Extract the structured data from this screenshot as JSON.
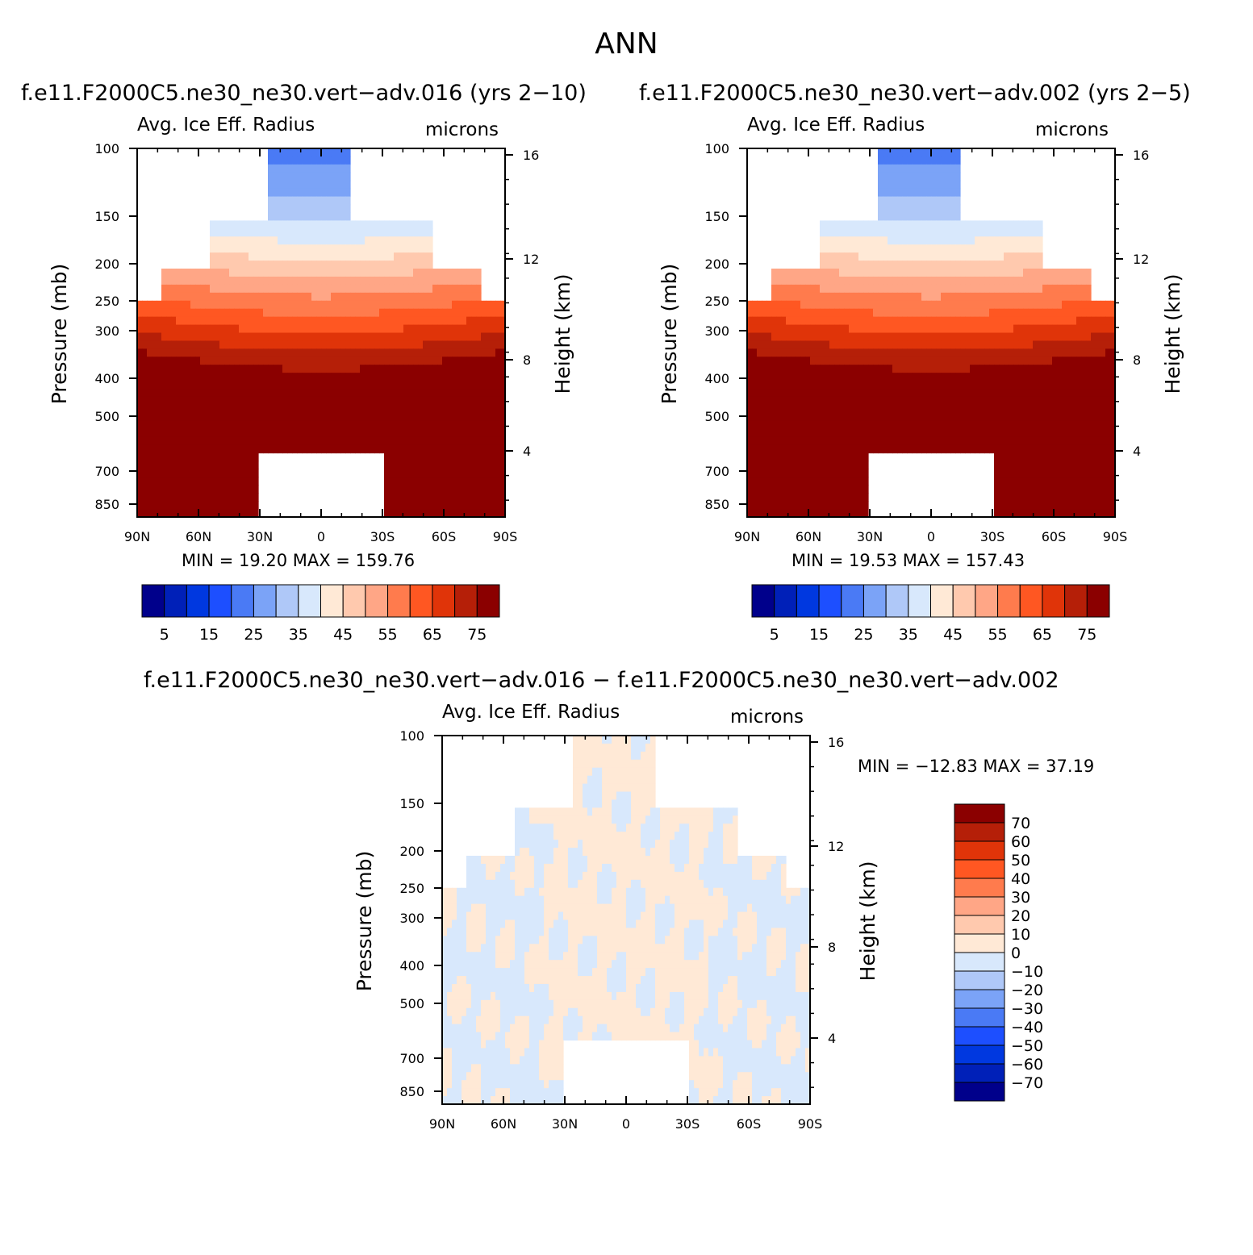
{
  "page_title": "ANN",
  "colors": {
    "seq": [
      "#00008B",
      "#0020B8",
      "#0038E0",
      "#1D4FFF",
      "#4A7AF5",
      "#7BA3F7",
      "#AFC8F8",
      "#D8E8FC",
      "#FFE9D6",
      "#FFC9AE",
      "#FFA686",
      "#FF7B4D",
      "#FF5722",
      "#E03409",
      "#B51F08",
      "#8B0000"
    ],
    "diff": [
      "#00008B",
      "#0020B8",
      "#0038E0",
      "#1D4FFF",
      "#4A7AF5",
      "#7BA3F7",
      "#AFC8F8",
      "#D8E8FC",
      "#FFE9D6",
      "#FFC9AE",
      "#FFA686",
      "#FF7B4D",
      "#FF5722",
      "#E03409",
      "#B51F08",
      "#8B0000"
    ]
  },
  "chart_data": [
    {
      "type": "heatmap",
      "title": "f.e11.F2000C5.ne30_ne30.vert−adv.016 (yrs 2−10)",
      "left_label": "Avg. Ice Eff. Radius",
      "right_label": "microns",
      "xlabel": "",
      "ylabel": "Pressure (mb)",
      "ylabel_right": "Height (km)",
      "x_ticks": [
        "90N",
        "60N",
        "30N",
        "0",
        "30S",
        "60S",
        "90S"
      ],
      "y_ticks": [
        "100",
        "150",
        "200",
        "250",
        "300",
        "400",
        "500",
        "700",
        "850"
      ],
      "y_right_ticks": [
        "16",
        "12",
        "8",
        "4"
      ],
      "min_text": "MIN =   19.20   MAX =  159.76",
      "colorbar": {
        "orientation": "horizontal",
        "labels": [
          "5",
          "15",
          "25",
          "35",
          "45",
          "55",
          "65",
          "75"
        ]
      }
    },
    {
      "type": "heatmap",
      "title": "f.e11.F2000C5.ne30_ne30.vert−adv.002 (yrs 2−5)",
      "left_label": "Avg. Ice Eff. Radius",
      "right_label": "microns",
      "xlabel": "",
      "ylabel": "Pressure (mb)",
      "ylabel_right": "Height (km)",
      "x_ticks": [
        "90N",
        "60N",
        "30N",
        "0",
        "30S",
        "60S",
        "90S"
      ],
      "y_ticks": [
        "100",
        "150",
        "200",
        "250",
        "300",
        "400",
        "500",
        "700",
        "850"
      ],
      "y_right_ticks": [
        "16",
        "12",
        "8",
        "4"
      ],
      "min_text": "MIN =   19.53   MAX =  157.43",
      "colorbar": {
        "orientation": "horizontal",
        "labels": [
          "5",
          "15",
          "25",
          "35",
          "45",
          "55",
          "65",
          "75"
        ]
      }
    },
    {
      "type": "heatmap",
      "title": "f.e11.F2000C5.ne30_ne30.vert−adv.016 − f.e11.F2000C5.ne30_ne30.vert−adv.002",
      "left_label": "Avg. Ice Eff. Radius",
      "right_label": "microns",
      "xlabel": "",
      "ylabel": "Pressure (mb)",
      "ylabel_right": "Height (km)",
      "x_ticks": [
        "90N",
        "60N",
        "30N",
        "0",
        "30S",
        "60S",
        "90S"
      ],
      "y_ticks": [
        "100",
        "150",
        "200",
        "250",
        "300",
        "400",
        "500",
        "700",
        "850"
      ],
      "y_right_ticks": [
        "16",
        "12",
        "8",
        "4"
      ],
      "min_text": "MIN = −12.83   MAX =   37.19",
      "colorbar": {
        "orientation": "vertical",
        "labels": [
          "70",
          "60",
          "50",
          "40",
          "30",
          "20",
          "10",
          "0",
          "−10",
          "−20",
          "−30",
          "−40",
          "−50",
          "−60",
          "−70"
        ]
      }
    }
  ]
}
